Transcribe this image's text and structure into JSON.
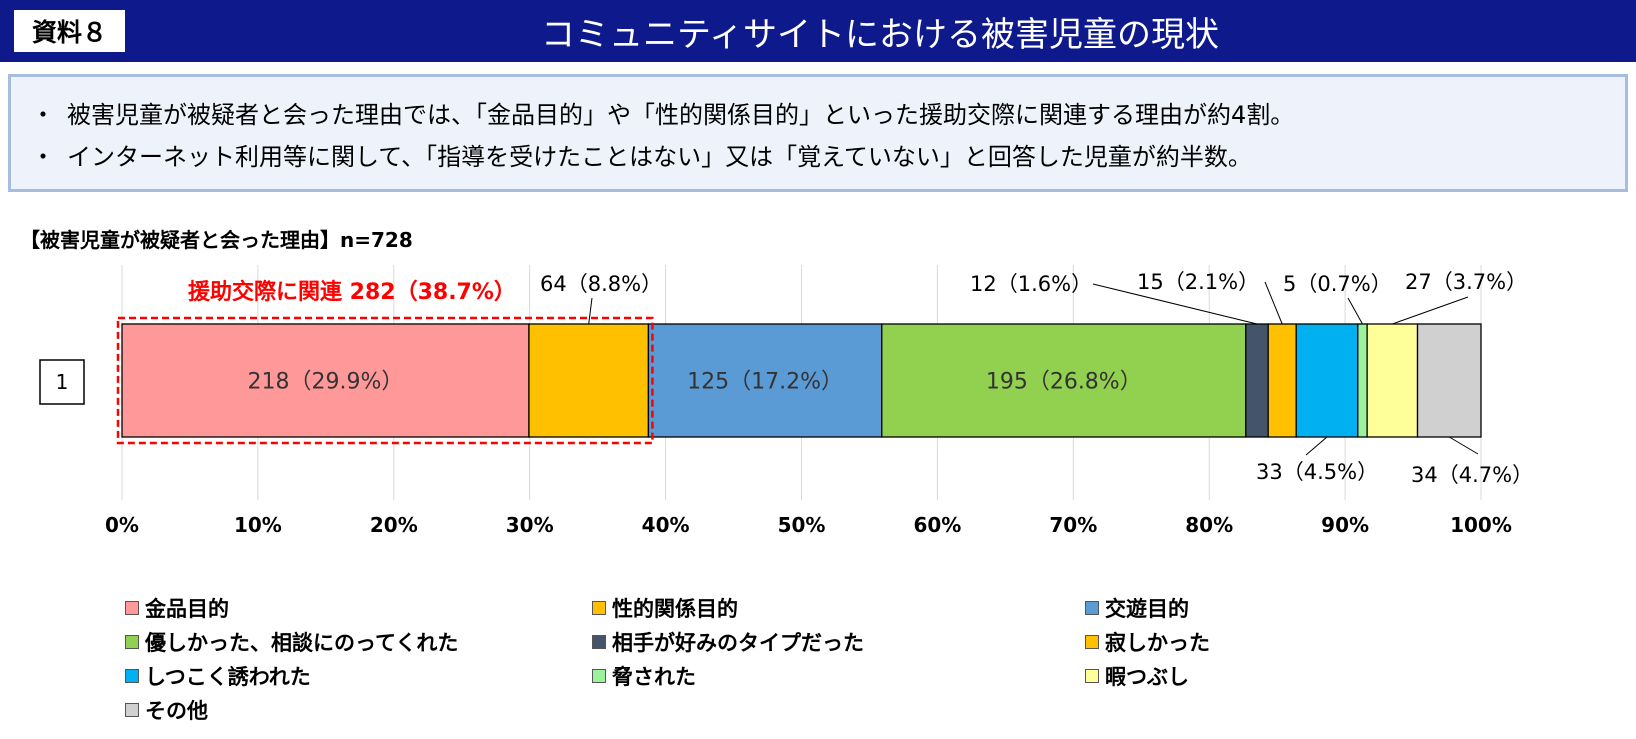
{
  "header": {
    "doc_label": "資料８",
    "title": "コミュニティサイトにおける被害児童の現状"
  },
  "summary": {
    "bullet": "・",
    "lines": [
      "被害児童が被疑者と会った理由では、「金品目的」や「性的関係目的」といった援助交際に関連する理由が約4割。",
      "インターネット利用等に関して、「指導を受けたことはない」又は「覚えていない」と回答した児童が約半数。"
    ]
  },
  "chart_data": {
    "type": "bar",
    "orientation": "horizontal",
    "stacked": true,
    "title": "【被害児童が被疑者と会った理由】n=728",
    "categories": [
      "1"
    ],
    "xlim": [
      0,
      100
    ],
    "x_ticks": [
      "0%",
      "10%",
      "20%",
      "30%",
      "40%",
      "50%",
      "60%",
      "70%",
      "80%",
      "90%",
      "100%"
    ],
    "grid": true,
    "legend_position": "bottom",
    "series": [
      {
        "name": "金品目的",
        "count": 218,
        "percent": 29.9,
        "label": "218（29.9%）",
        "color": "#ff9999"
      },
      {
        "name": "性的関係目的",
        "count": 64,
        "percent": 8.8,
        "label": "64（8.8%）",
        "color": "#ffc000"
      },
      {
        "name": "交遊目的",
        "count": 125,
        "percent": 17.2,
        "label": "125（17.2%）",
        "color": "#5b9bd5"
      },
      {
        "name": "優しかった、相談にのってくれた",
        "count": 195,
        "percent": 26.8,
        "label": "195（26.8%）",
        "color": "#92d050"
      },
      {
        "name": "相手が好みのタイプだった",
        "count": 12,
        "percent": 1.6,
        "label": "12（1.6%）",
        "color": "#44546a"
      },
      {
        "name": "寂しかった",
        "count": 15,
        "percent": 2.1,
        "label": "15（2.1%）",
        "color": "#ffc000"
      },
      {
        "name": "しつこく誘われた",
        "count": 33,
        "percent": 4.5,
        "label": "33（4.5%）",
        "color": "#00b0f0"
      },
      {
        "name": "脅された",
        "count": 5,
        "percent": 0.7,
        "label": "5（0.7%）",
        "color": "#9cf29c"
      },
      {
        "name": "暇つぶし",
        "count": 27,
        "percent": 3.7,
        "label": "27（3.7%）",
        "color": "#ffff99"
      },
      {
        "name": "その他",
        "count": 34,
        "percent": 4.7,
        "label": "34（4.7%）",
        "color": "#d0d0d0"
      }
    ],
    "annotation": {
      "text": "援助交際に関連 282（38.7%）",
      "color": "#ff0000",
      "spans_series": [
        "金品目的",
        "性的関係目的"
      ]
    }
  }
}
